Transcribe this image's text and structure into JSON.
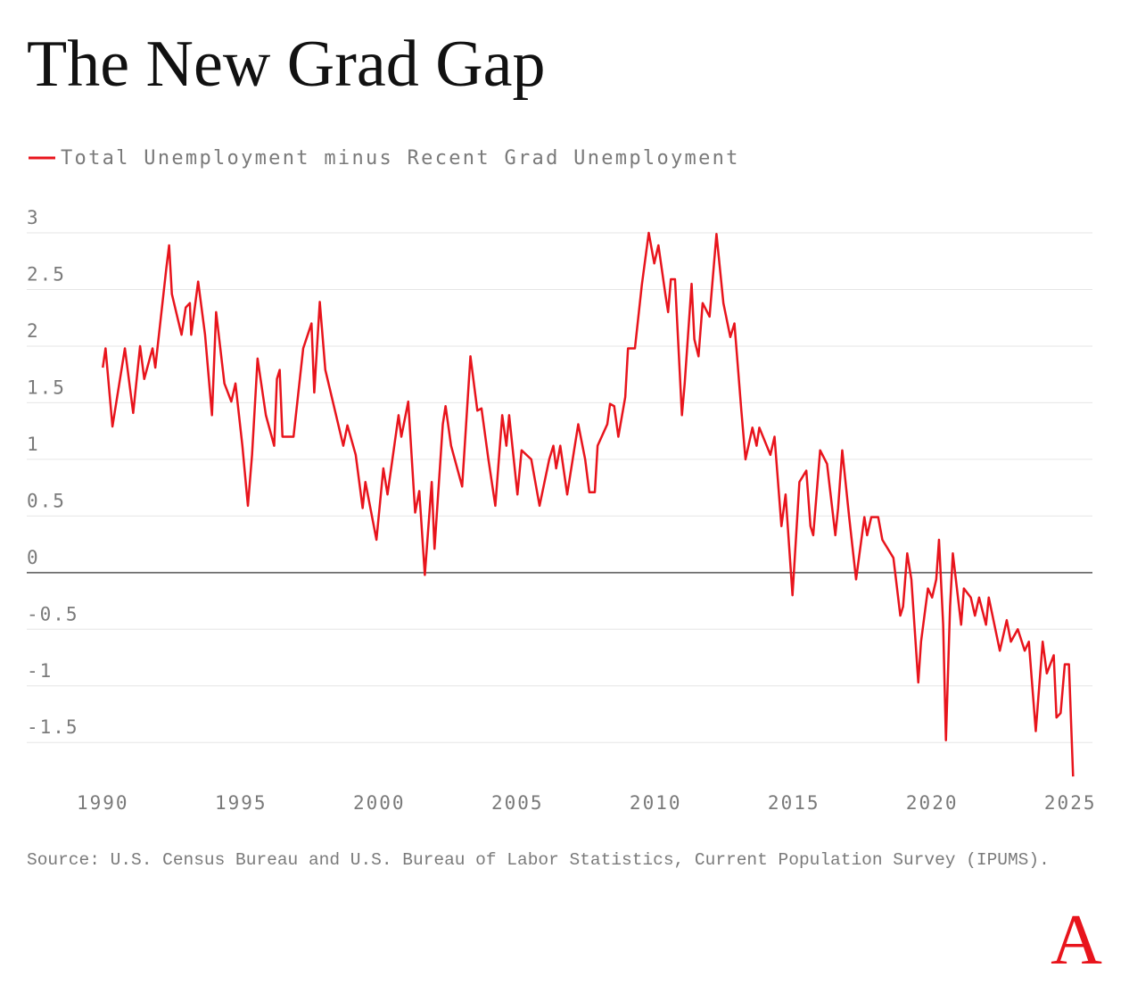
{
  "chart_data": {
    "type": "line",
    "title": "The New Grad Gap",
    "source": "Source: U.S. Census Bureau and U.S. Bureau of Labor Statistics, Current Population Survey (IPUMS).",
    "logo": "A",
    "xlim": [
      1987.25,
      2025.8
    ],
    "ylim": [
      -1.9,
      3
    ],
    "xticks": [
      1990,
      1995,
      2000,
      2005,
      2010,
      2015,
      2020,
      2025
    ],
    "yticks": [
      3,
      2.5,
      2,
      1.5,
      1,
      0.5,
      0,
      -0.5,
      -1,
      -1.5
    ],
    "grid": true,
    "legend": "top-left",
    "x": [
      1990.0,
      1990.1,
      1990.35,
      1990.8,
      1991.1,
      1991.35,
      1991.5,
      1991.8,
      1991.9,
      1992.05,
      1992.3,
      1992.4,
      1992.5,
      1992.85,
      1993.0,
      1993.15,
      1993.2,
      1993.45,
      1993.7,
      1993.95,
      1994.1,
      1994.4,
      1994.65,
      1994.8,
      1995.05,
      1995.25,
      1995.4,
      1995.6,
      1995.9,
      1996.2,
      1996.3,
      1996.4,
      1996.5,
      1996.9,
      1997.25,
      1997.55,
      1997.65,
      1997.85,
      1998.05,
      1998.4,
      1998.7,
      1998.85,
      1999.15,
      1999.4,
      1999.5,
      1999.9,
      2000.15,
      2000.3,
      2000.7,
      2000.8,
      2001.05,
      2001.3,
      2001.45,
      2001.65,
      2001.9,
      2002.0,
      2002.3,
      2002.4,
      2002.6,
      2003.0,
      2003.3,
      2003.55,
      2003.7,
      2003.95,
      2004.2,
      2004.45,
      2004.6,
      2004.7,
      2005.0,
      2005.15,
      2005.5,
      2005.8,
      2006.15,
      2006.3,
      2006.4,
      2006.55,
      2006.8,
      2007.05,
      2007.2,
      2007.45,
      2007.6,
      2007.8,
      2007.9,
      2008.25,
      2008.35,
      2008.5,
      2008.65,
      2008.9,
      2009.0,
      2009.25,
      2009.5,
      2009.75,
      2009.95,
      2010.1,
      2010.35,
      2010.45,
      2010.55,
      2010.7,
      2010.95,
      2011.05,
      2011.3,
      2011.4,
      2011.55,
      2011.7,
      2011.95,
      2012.2,
      2012.45,
      2012.7,
      2012.85,
      2013.1,
      2013.25,
      2013.5,
      2013.65,
      2013.75,
      2014.15,
      2014.3,
      2014.55,
      2014.7,
      2014.95,
      2015.2,
      2015.45,
      2015.6,
      2015.7,
      2015.95,
      2016.2,
      2016.5,
      2016.6,
      2016.75,
      2017.0,
      2017.25,
      2017.55,
      2017.65,
      2017.8,
      2018.05,
      2018.2,
      2018.6,
      2018.85,
      2018.95,
      2019.1,
      2019.25,
      2019.5,
      2019.6,
      2019.85,
      2020.0,
      2020.15,
      2020.25,
      2020.4,
      2020.5,
      2020.65,
      2020.75,
      2021.05,
      2021.15,
      2021.4,
      2021.55,
      2021.7,
      2021.95,
      2022.05,
      2022.45,
      2022.7,
      2022.85,
      2023.1,
      2023.35,
      2023.5,
      2023.75,
      2024.0,
      2024.15,
      2024.4,
      2024.5,
      2024.65,
      2024.8,
      2024.95,
      2025.1
    ],
    "series": [
      {
        "name": "Total Unemployment minus Recent Grad Unemployment",
        "color": "#e8141c",
        "values": [
          1.81,
          1.98,
          1.29,
          1.98,
          1.41,
          2.0,
          1.71,
          1.98,
          1.81,
          2.14,
          2.69,
          2.89,
          2.46,
          2.1,
          2.34,
          2.38,
          2.1,
          2.57,
          2.1,
          1.39,
          2.3,
          1.67,
          1.51,
          1.67,
          1.12,
          0.59,
          1.04,
          1.89,
          1.39,
          1.12,
          1.71,
          1.79,
          1.2,
          1.2,
          1.98,
          2.2,
          1.59,
          2.39,
          1.79,
          1.43,
          1.12,
          1.3,
          1.04,
          0.57,
          0.8,
          0.29,
          0.92,
          0.69,
          1.39,
          1.2,
          1.51,
          0.53,
          0.72,
          -0.02,
          0.8,
          0.21,
          1.31,
          1.47,
          1.12,
          0.76,
          1.91,
          1.43,
          1.45,
          1.0,
          0.59,
          1.39,
          1.12,
          1.39,
          0.69,
          1.08,
          1.0,
          0.59,
          1.0,
          1.12,
          0.92,
          1.12,
          0.69,
          1.08,
          1.31,
          1.0,
          0.71,
          0.71,
          1.12,
          1.31,
          1.49,
          1.47,
          1.2,
          1.55,
          1.98,
          1.98,
          2.54,
          3.0,
          2.73,
          2.89,
          2.46,
          2.3,
          2.59,
          2.59,
          1.39,
          1.67,
          2.55,
          2.06,
          1.91,
          2.38,
          2.26,
          2.99,
          2.38,
          2.08,
          2.2,
          1.43,
          1.0,
          1.28,
          1.12,
          1.28,
          1.04,
          1.2,
          0.41,
          0.69,
          -0.2,
          0.8,
          0.9,
          0.41,
          0.33,
          1.08,
          0.96,
          0.33,
          0.57,
          1.08,
          0.49,
          -0.06,
          0.49,
          0.33,
          0.49,
          0.49,
          0.29,
          0.13,
          -0.38,
          -0.3,
          0.17,
          -0.06,
          -0.97,
          -0.61,
          -0.14,
          -0.22,
          -0.06,
          0.29,
          -0.46,
          -1.48,
          -0.3,
          0.17,
          -0.46,
          -0.14,
          -0.22,
          -0.38,
          -0.22,
          -0.46,
          -0.22,
          -0.69,
          -0.42,
          -0.61,
          -0.5,
          -0.69,
          -0.61,
          -1.4,
          -0.61,
          -0.89,
          -0.73,
          -1.28,
          -1.24,
          -0.81,
          -0.81,
          -1.8
        ]
      }
    ]
  }
}
